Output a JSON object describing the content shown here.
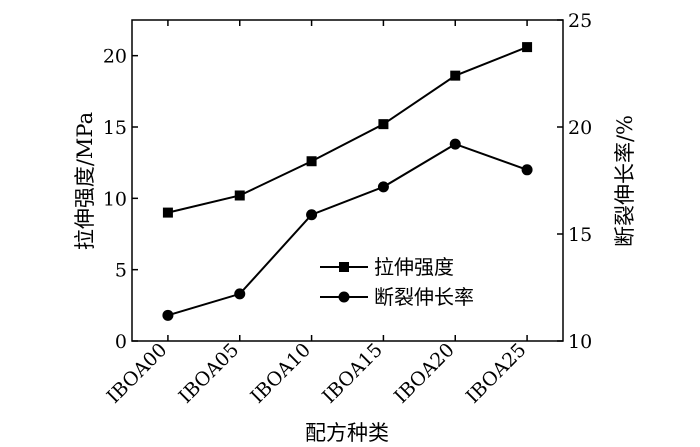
{
  "chart_data": {
    "type": "line",
    "categories": [
      "IBOA00",
      "IBOA05",
      "IBOA10",
      "IBOA15",
      "IBOA20",
      "IBOA25"
    ],
    "xlabel": "配方种类",
    "left_axis": {
      "label": "拉伸强度/MPa",
      "ylim": [
        0,
        22.5
      ],
      "ticks": [
        "0",
        "5",
        "10",
        "15",
        "20"
      ],
      "tick_values": [
        0,
        5,
        10,
        15,
        20
      ]
    },
    "right_axis": {
      "label": "断裂伸长率/%",
      "ylim": [
        10,
        25
      ],
      "ticks": [
        "10",
        "15",
        "20",
        "25"
      ],
      "tick_values": [
        10,
        15,
        20,
        25
      ]
    },
    "series": [
      {
        "name": "拉伸强度",
        "axis": "left",
        "marker": "square",
        "values": [
          9.0,
          10.2,
          12.6,
          15.2,
          18.6,
          20.6
        ]
      },
      {
        "name": "断裂伸长率",
        "axis": "right",
        "marker": "circle",
        "values": [
          11.2,
          12.2,
          15.9,
          17.2,
          19.2,
          18.0
        ]
      }
    ],
    "legend_position": "center-right",
    "grid": false
  }
}
